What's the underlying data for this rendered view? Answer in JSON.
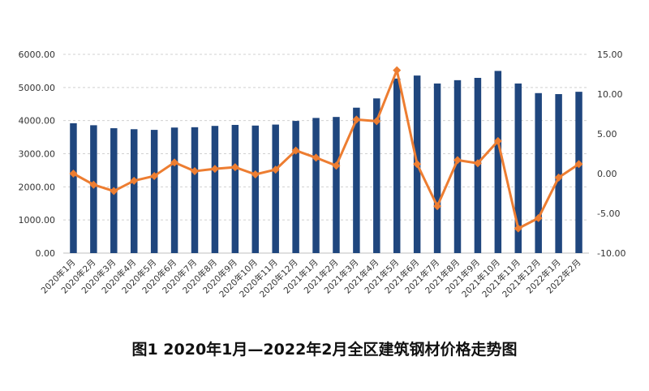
{
  "chart_data": {
    "type": "bar",
    "title": "图1 2020年1月—2022年2月全区建筑钢材价格走势图",
    "categories": [
      "2020年1月",
      "2020年2月",
      "2020年3月",
      "2020年4月",
      "2020年5月",
      "2020年6月",
      "2020年7月",
      "2020年8月",
      "2020年9月",
      "2020年10月",
      "2020年11月",
      "2020年12月",
      "2021年1月",
      "2021年2月",
      "2021年3月",
      "2021年4月",
      "2021年5月",
      "2021年6月",
      "2021年7月",
      "2021年8月",
      "2021年9月",
      "2021年10月",
      "2021年11月",
      "2021年12月",
      "2022年1月",
      "2022年2月"
    ],
    "series": [
      {
        "type": "bar",
        "axis": "left",
        "color": "#1f467e",
        "values": [
          3920,
          3860,
          3770,
          3740,
          3720,
          3790,
          3800,
          3840,
          3870,
          3850,
          3880,
          3990,
          4080,
          4110,
          4390,
          4670,
          5270,
          5360,
          5120,
          5220,
          5290,
          5500,
          5120,
          4830,
          4800,
          4870
        ]
      },
      {
        "type": "line",
        "axis": "right",
        "color": "#ed7d31",
        "values": [
          0.0,
          -1.4,
          -2.2,
          -0.9,
          -0.3,
          1.4,
          0.3,
          0.6,
          0.8,
          -0.1,
          0.5,
          2.9,
          2.0,
          1.0,
          6.8,
          6.6,
          13.0,
          1.2,
          -4.1,
          1.7,
          1.3,
          4.1,
          -6.9,
          -5.6,
          -0.5,
          1.2
        ]
      }
    ],
    "ylim_left": [
      0,
      6000
    ],
    "ylim_right": [
      -10,
      15
    ],
    "yticks_left": [
      "0.00",
      "1000.00",
      "2000.00",
      "3000.00",
      "4000.00",
      "5000.00",
      "6000.00"
    ],
    "yticks_right": [
      "-10.00",
      "-5.00",
      "0.00",
      "5.00",
      "10.00",
      "15.00"
    ],
    "grid": true
  }
}
